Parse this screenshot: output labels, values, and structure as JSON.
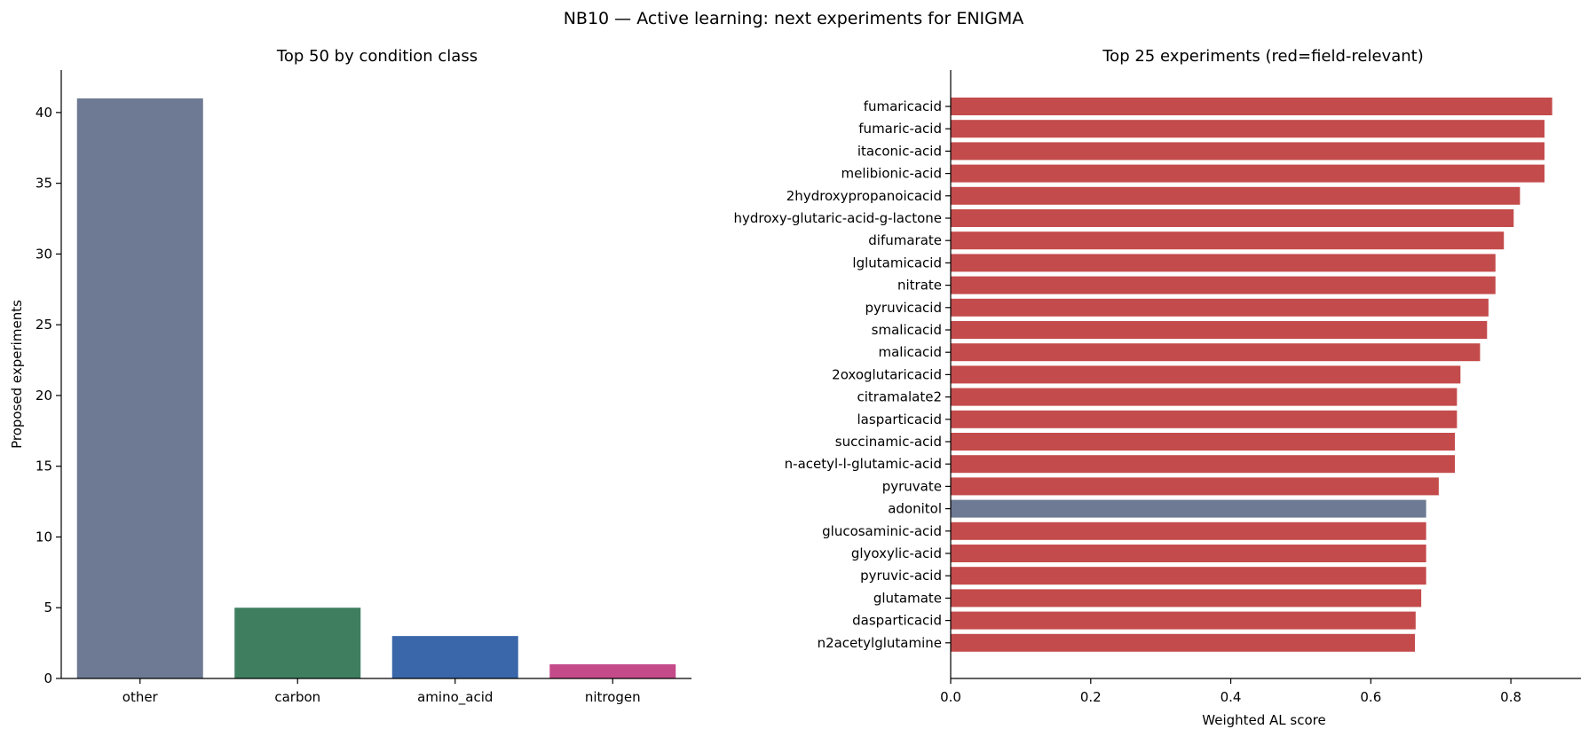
{
  "suptitle": "NB10 — Active learning: next experiments for ENIGMA",
  "colors": {
    "other": "#6e7a94",
    "carbon": "#3f7f5f",
    "amino_acid": "#3a67a9",
    "nitrogen": "#c44a8a",
    "field_relevant": "#c44b4b",
    "not_field_relevant": "#6e7a94"
  },
  "chart_data": [
    {
      "type": "bar",
      "title": "Top 50 by condition class",
      "xlabel": "",
      "ylabel": "Proposed experiments",
      "categories": [
        "other",
        "carbon",
        "amino_acid",
        "nitrogen"
      ],
      "values": [
        41,
        5,
        3,
        1
      ],
      "ylim": [
        0,
        43
      ],
      "yticks": [
        "0",
        "5",
        "10",
        "15",
        "20",
        "25",
        "30",
        "35",
        "40"
      ],
      "grid": false,
      "legend": "none"
    },
    {
      "type": "bar",
      "orientation": "horizontal",
      "title": "Top 25 experiments (red=field-relevant)",
      "xlabel": "Weighted AL score",
      "ylabel": "",
      "categories": [
        "fumaricacid",
        "fumaric-acid",
        "itaconic-acid",
        "melibionic-acid",
        "2hydroxypropanoicacid",
        "hydroxy-glutaric-acid-g-lactone",
        "difumarate",
        "lglutamicacid",
        "nitrate",
        "pyruvicacid",
        "smalicacid",
        "malicacid",
        "2oxoglutaricacid",
        "citramalate2",
        "lasparticacid",
        "succinamic-acid",
        "n-acetyl-l-glutamic-acid",
        "pyruvate",
        "adonitol",
        "glucosaminic-acid",
        "glyoxylic-acid",
        "pyruvic-acid",
        "glutamate",
        "dasparticacid",
        "n2acetylglutamine"
      ],
      "values": [
        0.859,
        0.848,
        0.848,
        0.848,
        0.813,
        0.804,
        0.79,
        0.778,
        0.778,
        0.768,
        0.766,
        0.756,
        0.728,
        0.723,
        0.723,
        0.72,
        0.72,
        0.697,
        0.679,
        0.679,
        0.679,
        0.679,
        0.672,
        0.664,
        0.663
      ],
      "field_relevant": [
        true,
        true,
        true,
        true,
        true,
        true,
        true,
        true,
        true,
        true,
        true,
        true,
        true,
        true,
        true,
        true,
        true,
        true,
        false,
        true,
        true,
        true,
        true,
        true,
        true
      ],
      "xlim": [
        0,
        0.9
      ],
      "xticks": [
        "0.0",
        "0.2",
        "0.4",
        "0.6",
        "0.8"
      ],
      "grid": false,
      "legend": "none"
    }
  ]
}
